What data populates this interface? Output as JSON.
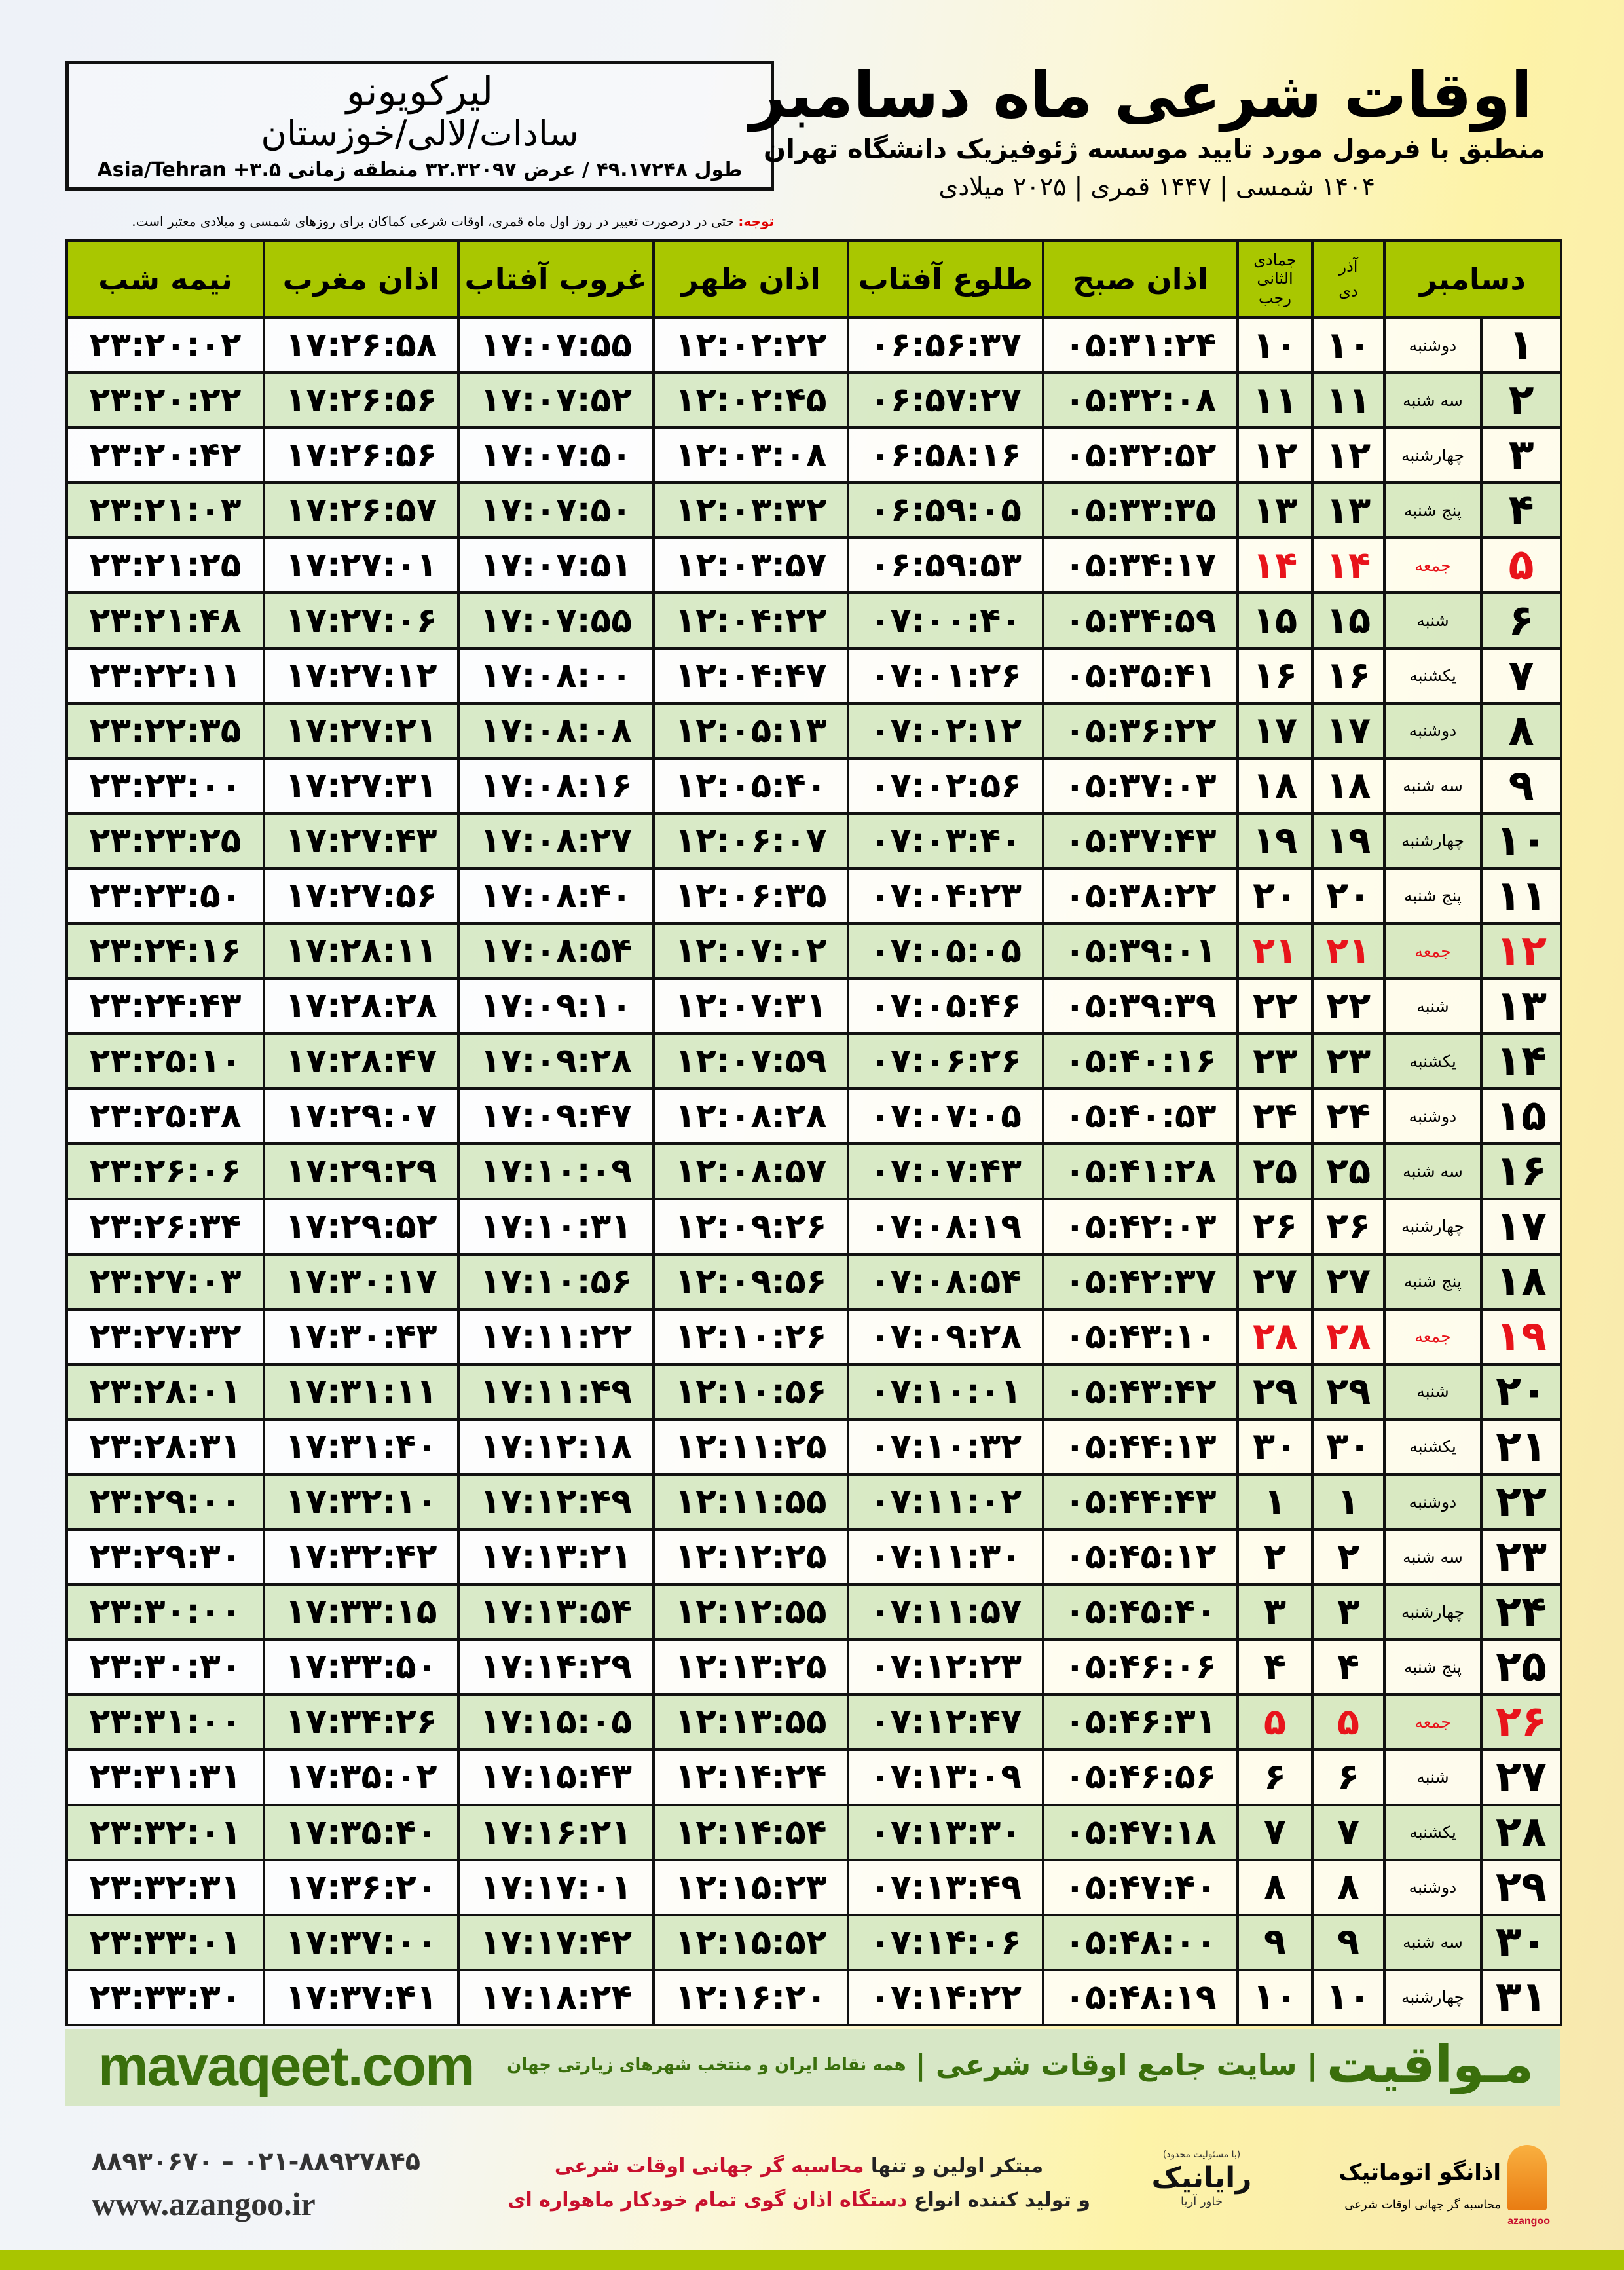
{
  "location": {
    "name": "لیرکویونو",
    "region": "سادات/لالی/خوزستان",
    "coords": "طول ۴۹.۱۷۲۴۸ / عرض ۳۲.۳۲۰۹۷ منطقه زمانی Asia/Tehran +۳.۵"
  },
  "header": {
    "title": "اوقات شرعی ماه دسامبر",
    "subtitle": "منطبق با فرمول مورد تایید موسسه ژئوفیزیک دانشگاه تهران",
    "years": "۱۴۰۴ شمسی | ۱۴۴۷ قمری | ۲۰۲۵ میلادی"
  },
  "note": {
    "label": "توجه:",
    "text": " حتی در درصورت تغییر در روز اول ماه قمری، اوقات شرعی کماکان برای روزهای شمسی و میلادی معتبر است."
  },
  "columns": {
    "month": "دسامبر",
    "shamsi_top": "آذر",
    "shamsi_bottom": "دی",
    "qamari_top": "جمادی الثانی",
    "qamari_bottom": "رجب",
    "fajr": "اذان صبح",
    "sunrise": "طلوع آفتاب",
    "dhuhr": "اذان ظهر",
    "sunset": "غروب آفتاب",
    "maghrib": "اذان مغرب",
    "midnight": "نیمه شب"
  },
  "colors": {
    "header_green": "#a9c700",
    "row_green": "#d6e8c4",
    "holiday_red": "#e8141b",
    "brand_green": "#3a6f0c"
  },
  "holiday_days": [
    5,
    12,
    19,
    26
  ],
  "rows": [
    [
      "۱",
      "دوشنبه",
      "۱۰",
      "۱۰",
      "۰۵:۳۱:۲۴",
      "۰۶:۵۶:۳۷",
      "۱۲:۰۲:۲۲",
      "۱۷:۰۷:۵۵",
      "۱۷:۲۶:۵۸",
      "۲۳:۲۰:۰۲"
    ],
    [
      "۲",
      "سه شنبه",
      "۱۱",
      "۱۱",
      "۰۵:۳۲:۰۸",
      "۰۶:۵۷:۲۷",
      "۱۲:۰۲:۴۵",
      "۱۷:۰۷:۵۲",
      "۱۷:۲۶:۵۶",
      "۲۳:۲۰:۲۲"
    ],
    [
      "۳",
      "چهارشنبه",
      "۱۲",
      "۱۲",
      "۰۵:۳۲:۵۲",
      "۰۶:۵۸:۱۶",
      "۱۲:۰۳:۰۸",
      "۱۷:۰۷:۵۰",
      "۱۷:۲۶:۵۶",
      "۲۳:۲۰:۴۲"
    ],
    [
      "۴",
      "پنج شنبه",
      "۱۳",
      "۱۳",
      "۰۵:۳۳:۳۵",
      "۰۶:۵۹:۰۵",
      "۱۲:۰۳:۳۲",
      "۱۷:۰۷:۵۰",
      "۱۷:۲۶:۵۷",
      "۲۳:۲۱:۰۳"
    ],
    [
      "۵",
      "جمعه",
      "۱۴",
      "۱۴",
      "۰۵:۳۴:۱۷",
      "۰۶:۵۹:۵۳",
      "۱۲:۰۳:۵۷",
      "۱۷:۰۷:۵۱",
      "۱۷:۲۷:۰۱",
      "۲۳:۲۱:۲۵"
    ],
    [
      "۶",
      "شنبه",
      "۱۵",
      "۱۵",
      "۰۵:۳۴:۵۹",
      "۰۷:۰۰:۴۰",
      "۱۲:۰۴:۲۲",
      "۱۷:۰۷:۵۵",
      "۱۷:۲۷:۰۶",
      "۲۳:۲۱:۴۸"
    ],
    [
      "۷",
      "یکشنبه",
      "۱۶",
      "۱۶",
      "۰۵:۳۵:۴۱",
      "۰۷:۰۱:۲۶",
      "۱۲:۰۴:۴۷",
      "۱۷:۰۸:۰۰",
      "۱۷:۲۷:۱۲",
      "۲۳:۲۲:۱۱"
    ],
    [
      "۸",
      "دوشنبه",
      "۱۷",
      "۱۷",
      "۰۵:۳۶:۲۲",
      "۰۷:۰۲:۱۲",
      "۱۲:۰۵:۱۳",
      "۱۷:۰۸:۰۸",
      "۱۷:۲۷:۲۱",
      "۲۳:۲۲:۳۵"
    ],
    [
      "۹",
      "سه شنبه",
      "۱۸",
      "۱۸",
      "۰۵:۳۷:۰۳",
      "۰۷:۰۲:۵۶",
      "۱۲:۰۵:۴۰",
      "۱۷:۰۸:۱۶",
      "۱۷:۲۷:۳۱",
      "۲۳:۲۳:۰۰"
    ],
    [
      "۱۰",
      "چهارشنبه",
      "۱۹",
      "۱۹",
      "۰۵:۳۷:۴۳",
      "۰۷:۰۳:۴۰",
      "۱۲:۰۶:۰۷",
      "۱۷:۰۸:۲۷",
      "۱۷:۲۷:۴۳",
      "۲۳:۲۳:۲۵"
    ],
    [
      "۱۱",
      "پنج شنبه",
      "۲۰",
      "۲۰",
      "۰۵:۳۸:۲۲",
      "۰۷:۰۴:۲۳",
      "۱۲:۰۶:۳۵",
      "۱۷:۰۸:۴۰",
      "۱۷:۲۷:۵۶",
      "۲۳:۲۳:۵۰"
    ],
    [
      "۱۲",
      "جمعه",
      "۲۱",
      "۲۱",
      "۰۵:۳۹:۰۱",
      "۰۷:۰۵:۰۵",
      "۱۲:۰۷:۰۲",
      "۱۷:۰۸:۵۴",
      "۱۷:۲۸:۱۱",
      "۲۳:۲۴:۱۶"
    ],
    [
      "۱۳",
      "شنبه",
      "۲۲",
      "۲۲",
      "۰۵:۳۹:۳۹",
      "۰۷:۰۵:۴۶",
      "۱۲:۰۷:۳۱",
      "۱۷:۰۹:۱۰",
      "۱۷:۲۸:۲۸",
      "۲۳:۲۴:۴۳"
    ],
    [
      "۱۴",
      "یکشنبه",
      "۲۳",
      "۲۳",
      "۰۵:۴۰:۱۶",
      "۰۷:۰۶:۲۶",
      "۱۲:۰۷:۵۹",
      "۱۷:۰۹:۲۸",
      "۱۷:۲۸:۴۷",
      "۲۳:۲۵:۱۰"
    ],
    [
      "۱۵",
      "دوشنبه",
      "۲۴",
      "۲۴",
      "۰۵:۴۰:۵۳",
      "۰۷:۰۷:۰۵",
      "۱۲:۰۸:۲۸",
      "۱۷:۰۹:۴۷",
      "۱۷:۲۹:۰۷",
      "۲۳:۲۵:۳۸"
    ],
    [
      "۱۶",
      "سه شنبه",
      "۲۵",
      "۲۵",
      "۰۵:۴۱:۲۸",
      "۰۷:۰۷:۴۳",
      "۱۲:۰۸:۵۷",
      "۱۷:۱۰:۰۹",
      "۱۷:۲۹:۲۹",
      "۲۳:۲۶:۰۶"
    ],
    [
      "۱۷",
      "چهارشنبه",
      "۲۶",
      "۲۶",
      "۰۵:۴۲:۰۳",
      "۰۷:۰۸:۱۹",
      "۱۲:۰۹:۲۶",
      "۱۷:۱۰:۳۱",
      "۱۷:۲۹:۵۲",
      "۲۳:۲۶:۳۴"
    ],
    [
      "۱۸",
      "پنج شنبه",
      "۲۷",
      "۲۷",
      "۰۵:۴۲:۳۷",
      "۰۷:۰۸:۵۴",
      "۱۲:۰۹:۵۶",
      "۱۷:۱۰:۵۶",
      "۱۷:۳۰:۱۷",
      "۲۳:۲۷:۰۳"
    ],
    [
      "۱۹",
      "جمعه",
      "۲۸",
      "۲۸",
      "۰۵:۴۳:۱۰",
      "۰۷:۰۹:۲۸",
      "۱۲:۱۰:۲۶",
      "۱۷:۱۱:۲۲",
      "۱۷:۳۰:۴۳",
      "۲۳:۲۷:۳۲"
    ],
    [
      "۲۰",
      "شنبه",
      "۲۹",
      "۲۹",
      "۰۵:۴۳:۴۲",
      "۰۷:۱۰:۰۱",
      "۱۲:۱۰:۵۶",
      "۱۷:۱۱:۴۹",
      "۱۷:۳۱:۱۱",
      "۲۳:۲۸:۰۱"
    ],
    [
      "۲۱",
      "یکشنبه",
      "۳۰",
      "۳۰",
      "۰۵:۴۴:۱۳",
      "۰۷:۱۰:۳۲",
      "۱۲:۱۱:۲۵",
      "۱۷:۱۲:۱۸",
      "۱۷:۳۱:۴۰",
      "۲۳:۲۸:۳۱"
    ],
    [
      "۲۲",
      "دوشنبه",
      "۱",
      "۱",
      "۰۵:۴۴:۴۳",
      "۰۷:۱۱:۰۲",
      "۱۲:۱۱:۵۵",
      "۱۷:۱۲:۴۹",
      "۱۷:۳۲:۱۰",
      "۲۳:۲۹:۰۰"
    ],
    [
      "۲۳",
      "سه شنبه",
      "۲",
      "۲",
      "۰۵:۴۵:۱۲",
      "۰۷:۱۱:۳۰",
      "۱۲:۱۲:۲۵",
      "۱۷:۱۳:۲۱",
      "۱۷:۳۲:۴۲",
      "۲۳:۲۹:۳۰"
    ],
    [
      "۲۴",
      "چهارشنبه",
      "۳",
      "۳",
      "۰۵:۴۵:۴۰",
      "۰۷:۱۱:۵۷",
      "۱۲:۱۲:۵۵",
      "۱۷:۱۳:۵۴",
      "۱۷:۳۳:۱۵",
      "۲۳:۳۰:۰۰"
    ],
    [
      "۲۵",
      "پنج شنبه",
      "۴",
      "۴",
      "۰۵:۴۶:۰۶",
      "۰۷:۱۲:۲۳",
      "۱۲:۱۳:۲۵",
      "۱۷:۱۴:۲۹",
      "۱۷:۳۳:۵۰",
      "۲۳:۳۰:۳۰"
    ],
    [
      "۲۶",
      "جمعه",
      "۵",
      "۵",
      "۰۵:۴۶:۳۱",
      "۰۷:۱۲:۴۷",
      "۱۲:۱۳:۵۵",
      "۱۷:۱۵:۰۵",
      "۱۷:۳۴:۲۶",
      "۲۳:۳۱:۰۰"
    ],
    [
      "۲۷",
      "شنبه",
      "۶",
      "۶",
      "۰۵:۴۶:۵۶",
      "۰۷:۱۳:۰۹",
      "۱۲:۱۴:۲۴",
      "۱۷:۱۵:۴۳",
      "۱۷:۳۵:۰۲",
      "۲۳:۳۱:۳۱"
    ],
    [
      "۲۸",
      "یکشنبه",
      "۷",
      "۷",
      "۰۵:۴۷:۱۸",
      "۰۷:۱۳:۳۰",
      "۱۲:۱۴:۵۴",
      "۱۷:۱۶:۲۱",
      "۱۷:۳۵:۴۰",
      "۲۳:۳۲:۰۱"
    ],
    [
      "۲۹",
      "دوشنبه",
      "۸",
      "۸",
      "۰۵:۴۷:۴۰",
      "۰۷:۱۳:۴۹",
      "۱۲:۱۵:۲۳",
      "۱۷:۱۷:۰۱",
      "۱۷:۳۶:۲۰",
      "۲۳:۳۲:۳۱"
    ],
    [
      "۳۰",
      "سه شنبه",
      "۹",
      "۹",
      "۰۵:۴۸:۰۰",
      "۰۷:۱۴:۰۶",
      "۱۲:۱۵:۵۲",
      "۱۷:۱۷:۴۲",
      "۱۷:۳۷:۰۰",
      "۲۳:۳۳:۰۱"
    ],
    [
      "۳۱",
      "چهارشنبه",
      "۱۰",
      "۱۰",
      "۰۵:۴۸:۱۹",
      "۰۷:۱۴:۲۲",
      "۱۲:۱۶:۲۰",
      "۱۷:۱۸:۲۴",
      "۱۷:۳۷:۴۱",
      "۲۳:۳۳:۳۰"
    ]
  ],
  "banner": {
    "logo": "مـواقیت",
    "tagline": "| سایت جامع اوقات شرعی |",
    "description": "همه نقاط ایران و منتخب شهرهای زیارتی جهان",
    "url": "mavaqeet.com"
  },
  "footer": {
    "promo_1a": "مبتکر اولین و تنها ",
    "promo_1b": "محاسبه گر جهانی اوقات شرعی",
    "promo_2a": "و تولید کننده انواع ",
    "promo_2b": "دستگاه اذان گوی تمام خودکار ماهواره ای",
    "phone": "۰۲۱-۸۸۹۲۷۸۴۵ – ۸۸۹۳۰۶۷۰",
    "website": "www.azangoo.ir",
    "rayanik_note": "(با مسئولیت محدود)",
    "rayanik_name": "رایانیک",
    "rayanik_side": "خاور آریا",
    "azangoo_name": "اذانگو اتوماتیک",
    "azangoo_latin": "azangoo",
    "azangoo_sub": "محاسبه گر جهانی اوقات شرعی"
  }
}
